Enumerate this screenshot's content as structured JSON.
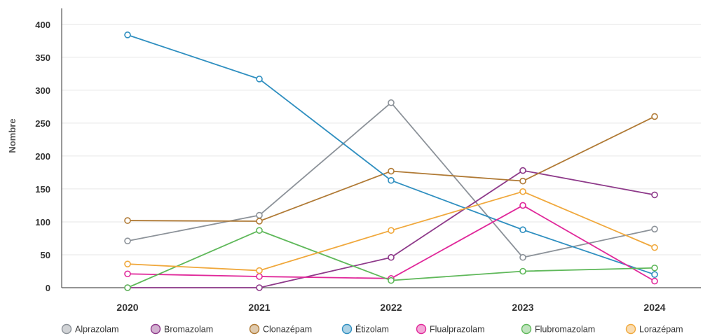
{
  "chart_data": {
    "type": "line",
    "title": "",
    "xlabel": "",
    "ylabel": "Nombre",
    "x": [
      "2020",
      "2021",
      "2022",
      "2023",
      "2024"
    ],
    "ylim": [
      0,
      420
    ],
    "yticks": [
      0,
      50,
      100,
      150,
      200,
      250,
      300,
      350,
      400
    ],
    "grid": "horizontal",
    "legend_position": "bottom",
    "series": [
      {
        "name": "Alprazolam",
        "color": "#8c9299",
        "values": [
          71,
          110,
          281,
          46,
          89
        ]
      },
      {
        "name": "Bromazolam",
        "color": "#8e3a8a",
        "values": [
          0,
          0,
          46,
          178,
          141
        ]
      },
      {
        "name": "Clonazépam",
        "color": "#b07a35",
        "values": [
          102,
          101,
          177,
          162,
          260
        ]
      },
      {
        "name": "Étizolam",
        "color": "#2f8fc0",
        "values": [
          384,
          317,
          163,
          88,
          20
        ]
      },
      {
        "name": "Flualprazolam",
        "color": "#e0289a",
        "values": [
          21,
          17,
          14,
          125,
          10
        ]
      },
      {
        "name": "Flubromazolam",
        "color": "#5fb85a",
        "values": [
          0,
          87,
          11,
          25,
          30
        ]
      },
      {
        "name": "Lorazépam",
        "color": "#f0a83c",
        "values": [
          36,
          26,
          87,
          146,
          61
        ]
      }
    ]
  }
}
